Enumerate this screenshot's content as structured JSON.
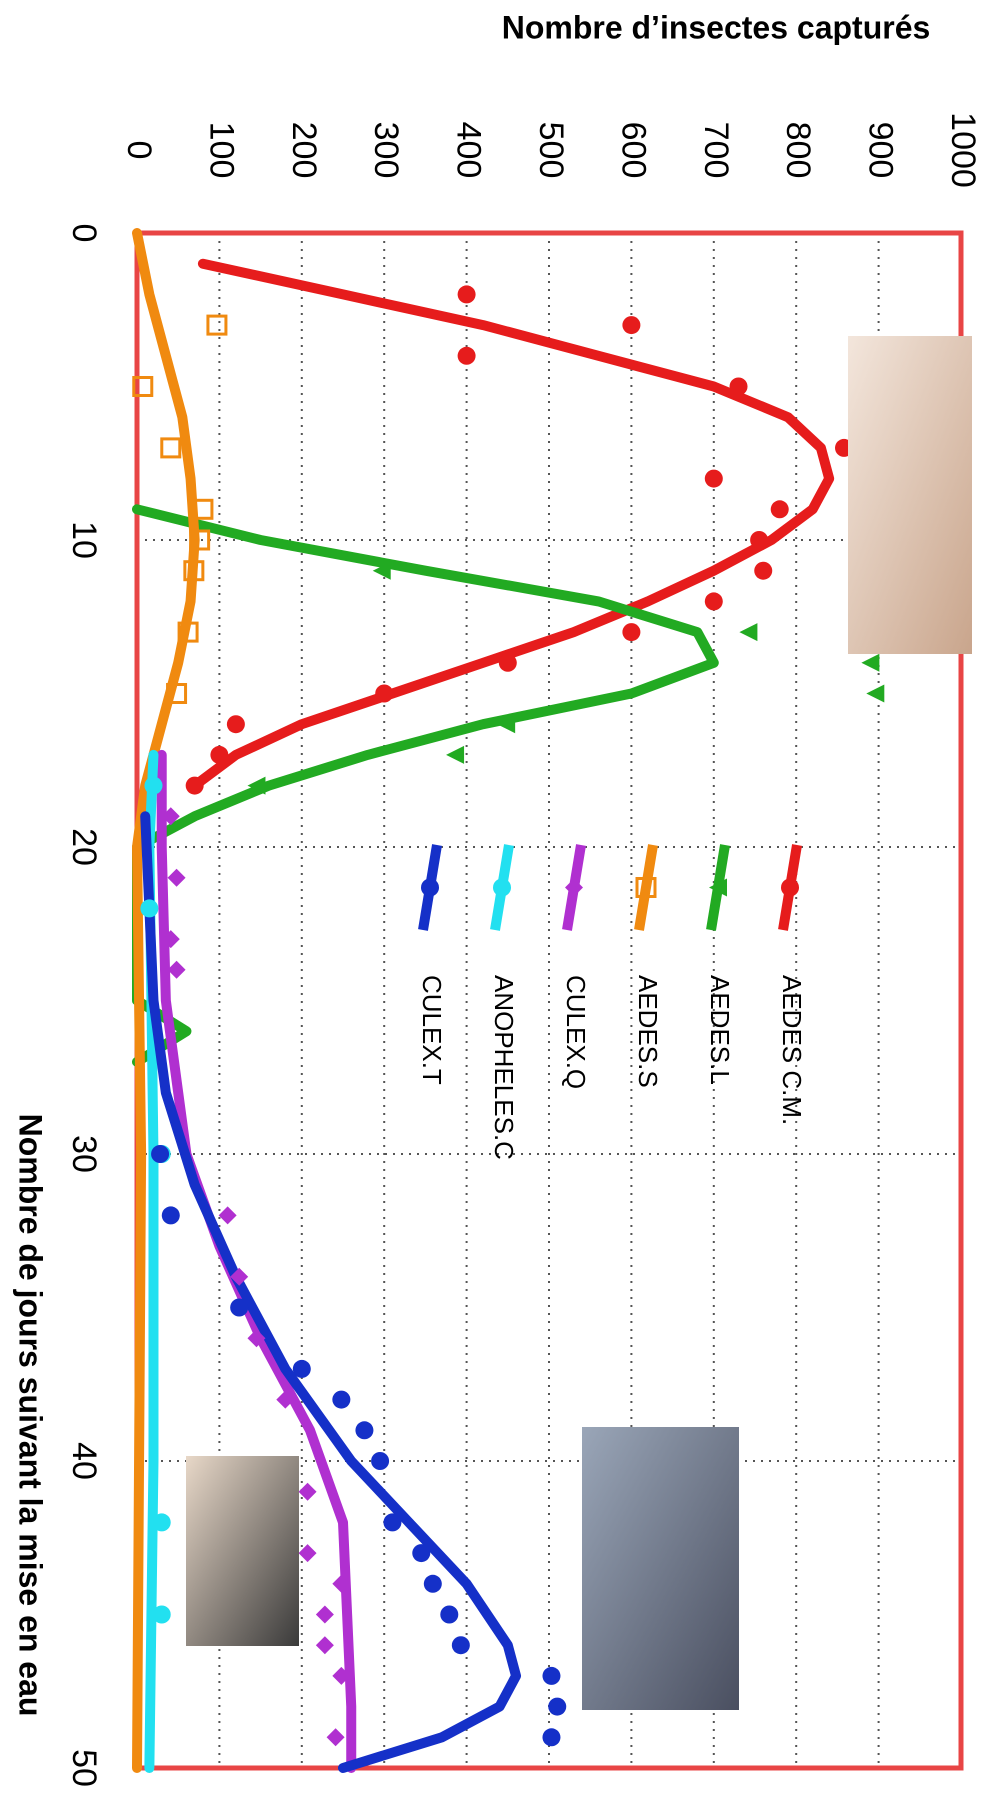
{
  "chart_data": {
    "type": "line",
    "title": "Nombre d’insectes capturés",
    "x_label": "Nombre de jours suivant la mise en eau",
    "xlim": [
      0,
      50
    ],
    "xticks": [
      0,
      10,
      20,
      30,
      40,
      50
    ],
    "ylim": [
      0,
      1000
    ],
    "yticks": [
      0,
      100,
      200,
      300,
      400,
      500,
      600,
      700,
      800,
      900,
      1000
    ],
    "grid": true,
    "legend": "upper-right",
    "series": [
      {
        "name": "AEDES C.M.",
        "color": "#e61c1c",
        "marker": "circle",
        "points": {
          "x": [
            2,
            4,
            3,
            5,
            7,
            8,
            9,
            10,
            11,
            12,
            13,
            14,
            15,
            16,
            17,
            18
          ],
          "values": [
            400,
            400,
            600,
            730,
            858,
            700,
            780,
            755,
            760,
            700,
            600,
            450,
            300,
            120,
            100,
            70
          ]
        },
        "curve": {
          "x": [
            1,
            2,
            3,
            4,
            5,
            6,
            7,
            8,
            9,
            10,
            11,
            12,
            13,
            14,
            15,
            16,
            17,
            18
          ],
          "values": [
            80,
            250,
            420,
            560,
            700,
            790,
            830,
            840,
            820,
            770,
            700,
            620,
            530,
            420,
            310,
            200,
            120,
            70
          ]
        }
      },
      {
        "name": "AEDES.L",
        "color": "#22aa22",
        "marker": "triangle",
        "points": {
          "x": [
            11,
            13,
            14,
            15,
            16,
            17,
            18
          ],
          "values": [
            297,
            742,
            890,
            896,
            448,
            386,
            145
          ]
        },
        "curve": {
          "x": [
            9,
            10,
            11,
            12,
            13,
            14,
            15,
            16,
            17,
            18,
            19,
            20,
            25,
            26,
            27
          ],
          "values": [
            0,
            150,
            350,
            560,
            680,
            700,
            600,
            420,
            280,
            160,
            70,
            0,
            0,
            60,
            0
          ]
        }
      },
      {
        "name": "AEDES.S",
        "color": "#f08a10",
        "marker": "square",
        "points": {
          "x": [
            3,
            5,
            7,
            9,
            10,
            11,
            13,
            15
          ],
          "values": [
            97,
            7,
            41,
            80,
            76,
            69,
            62,
            48
          ]
        },
        "curve": {
          "x": [
            0,
            2,
            4,
            6,
            8,
            10,
            12,
            14,
            16,
            18,
            20,
            30,
            50
          ],
          "values": [
            0,
            15,
            35,
            55,
            65,
            70,
            65,
            50,
            30,
            10,
            0,
            5,
            0
          ]
        }
      },
      {
        "name": "CULEX.Q",
        "color": "#b030d0",
        "marker": "diamond",
        "points": {
          "x": [
            19,
            21,
            23,
            24,
            32,
            34,
            36,
            38,
            41,
            43,
            44,
            45,
            46,
            47,
            49
          ],
          "values": [
            41,
            48,
            41,
            48,
            110,
            124,
            145,
            180,
            207,
            207,
            248,
            228,
            228,
            248,
            241
          ]
        },
        "curve": {
          "x": [
            17,
            20,
            25,
            30,
            33,
            36,
            39,
            42,
            45,
            48,
            50
          ],
          "values": [
            30,
            30,
            35,
            60,
            100,
            150,
            210,
            250,
            255,
            260,
            260
          ]
        }
      },
      {
        "name": "ANOPHELES.C",
        "color": "#22e0f0",
        "marker": "circle",
        "points": {
          "x": [
            18,
            22,
            30,
            42,
            45
          ],
          "values": [
            20,
            15,
            30,
            30,
            30
          ]
        },
        "curve": {
          "x": [
            17,
            20,
            30,
            40,
            50
          ],
          "values": [
            20,
            15,
            20,
            20,
            15
          ]
        }
      },
      {
        "name": "CULEX.T",
        "color": "#1530c8",
        "marker": "circle",
        "points": {
          "x": [
            30,
            32,
            35,
            37,
            38,
            39,
            40,
            42,
            43,
            44,
            45,
            46,
            47,
            48,
            49
          ],
          "values": [
            28,
            41,
            124,
            200,
            248,
            276,
            295,
            310,
            345,
            359,
            379,
            393,
            503,
            510,
            503
          ]
        },
        "curve": {
          "x": [
            19,
            25,
            28,
            31,
            34,
            37,
            40,
            42,
            44,
            46,
            47,
            48,
            49,
            50
          ],
          "values": [
            10,
            20,
            35,
            70,
            120,
            180,
            260,
            330,
            400,
            450,
            460,
            440,
            370,
            250
          ]
        }
      }
    ]
  }
}
